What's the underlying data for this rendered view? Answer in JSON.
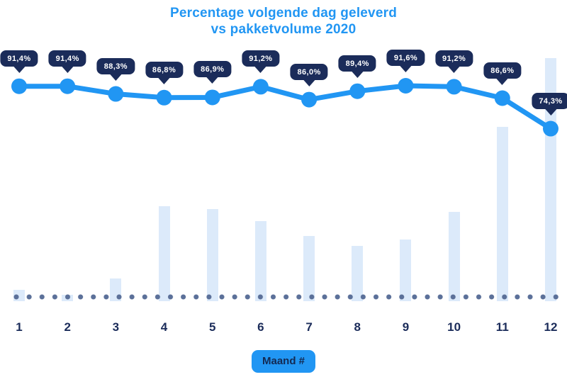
{
  "title": {
    "line1": "Percentage volgende dag geleverd",
    "line2": "vs pakketvolume 2020"
  },
  "x_axis_badge_label": "Maand #",
  "colors": {
    "accent_blue": "#2196f3",
    "navy": "#1b2c5a",
    "bar_fill": "#dceafa",
    "baseline_dot": "#5b7099",
    "badge_text": "#ffffff",
    "background": "#ffffff"
  },
  "chart_data": {
    "type": "combo",
    "title": "Percentage volgende dag geleverd vs pakketvolume 2020",
    "categories": [
      "1",
      "2",
      "3",
      "4",
      "5",
      "6",
      "7",
      "8",
      "9",
      "10",
      "11",
      "12"
    ],
    "xlabel": "Maand #",
    "ylabel": "",
    "legend": "none",
    "grid": false,
    "series": [
      {
        "name": "Percentage volgende dag geleverd",
        "type": "line",
        "unit": "%",
        "values": [
          91.4,
          91.4,
          88.3,
          86.8,
          86.9,
          91.2,
          86.0,
          89.4,
          91.6,
          91.2,
          86.6,
          74.3
        ],
        "labels": [
          "91,4%",
          "91,4%",
          "88,3%",
          "86,8%",
          "86,9%",
          "91,2%",
          "86,0%",
          "89,4%",
          "91,6%",
          "91,2%",
          "86,6%",
          "74,3%"
        ]
      },
      {
        "name": "Pakketvolume",
        "type": "bar",
        "unit": "relative, no axis shown (percent of max month)",
        "values": [
          4.7,
          2.6,
          9.3,
          39.1,
          37.9,
          32.9,
          26.8,
          22.7,
          25.4,
          36.7,
          71.7,
          100
        ]
      }
    ],
    "baseline": "dotted horizontal line at x-axis"
  }
}
